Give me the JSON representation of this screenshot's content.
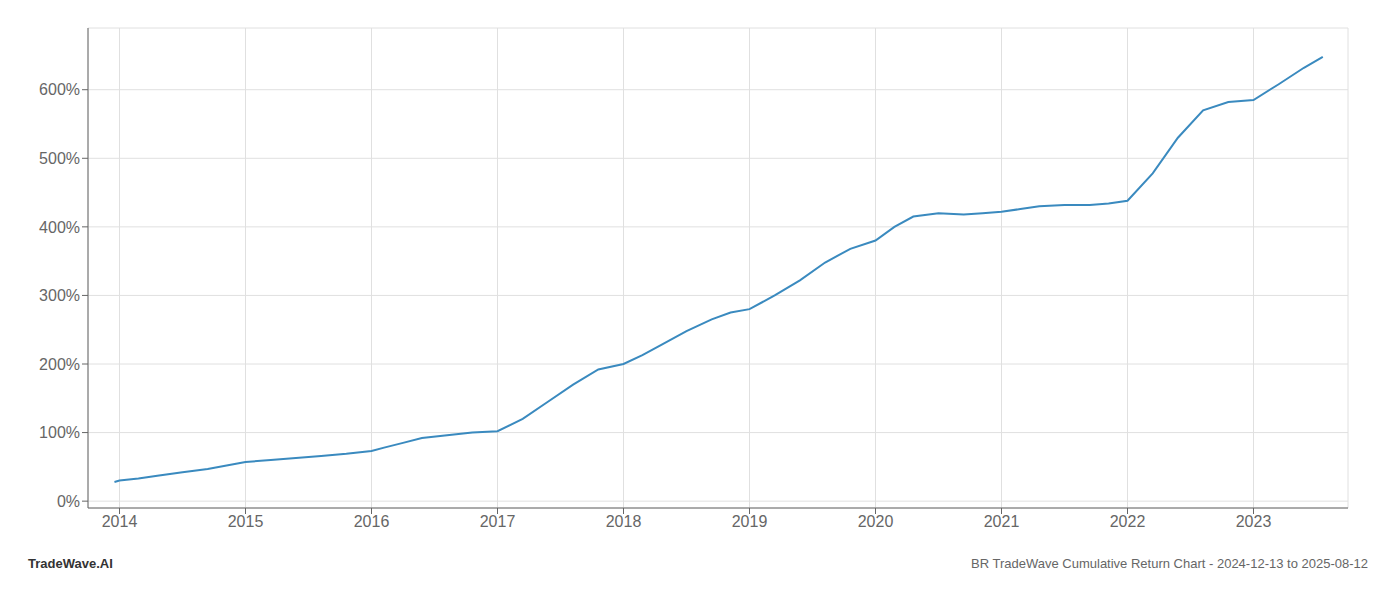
{
  "chart_data": {
    "type": "line",
    "title": "BR TradeWave Cumulative Return Chart - 2024-12-13 to 2025-08-12",
    "annotations": [
      "TradeWave.AI"
    ],
    "color": "#3a8abf",
    "grid": true,
    "x": [
      2013.96,
      2014.0,
      2014.15,
      2014.3,
      2014.5,
      2014.7,
      2014.85,
      2015.0,
      2015.2,
      2015.4,
      2015.6,
      2015.8,
      2016.0,
      2016.1,
      2016.25,
      2016.4,
      2016.6,
      2016.8,
      2017.0,
      2017.2,
      2017.4,
      2017.6,
      2017.8,
      2018.0,
      2018.15,
      2018.3,
      2018.5,
      2018.7,
      2018.85,
      2019.0,
      2019.2,
      2019.4,
      2019.6,
      2019.8,
      2020.0,
      2020.15,
      2020.3,
      2020.5,
      2020.7,
      2020.85,
      2021.0,
      2021.15,
      2021.3,
      2021.5,
      2021.7,
      2021.85,
      2022.0,
      2022.2,
      2022.4,
      2022.6,
      2022.8,
      2023.0,
      2023.2,
      2023.4,
      2023.55
    ],
    "values": [
      28,
      30,
      33,
      37,
      42,
      47,
      52,
      57,
      60,
      63,
      66,
      69,
      73,
      78,
      85,
      92,
      96,
      100,
      102,
      120,
      145,
      170,
      192,
      200,
      213,
      228,
      248,
      265,
      275,
      280,
      300,
      322,
      348,
      368,
      380,
      400,
      415,
      420,
      418,
      420,
      422,
      426,
      430,
      432,
      432,
      434,
      438,
      478,
      530,
      570,
      582,
      585,
      608,
      632,
      648
    ],
    "xlim": [
      2013.75,
      2023.75
    ],
    "xticks": [
      2014,
      2015,
      2016,
      2017,
      2018,
      2019,
      2020,
      2021,
      2022,
      2023
    ],
    "ylim": [
      -10,
      690
    ],
    "yticks": [
      {
        "value": 0,
        "label": "0%"
      },
      {
        "value": 100,
        "label": "100%"
      },
      {
        "value": 200,
        "label": "200%"
      },
      {
        "value": 300,
        "label": "300%"
      },
      {
        "value": 400,
        "label": "400%"
      },
      {
        "value": 500,
        "label": "500%"
      },
      {
        "value": 600,
        "label": "600%"
      }
    ]
  }
}
